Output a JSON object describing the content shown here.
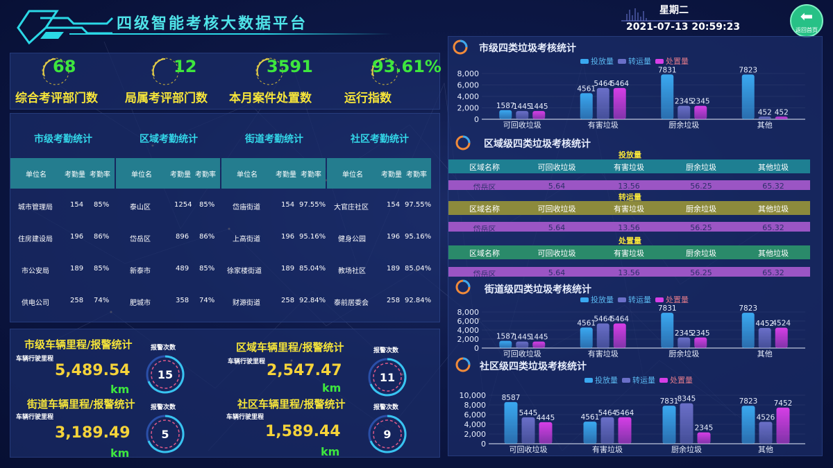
{
  "header": {
    "title": "四级智能考核大数据平台",
    "weekday": "星期二",
    "datetime": "2021-07-13 20:59:23",
    "home_label": "返回首页"
  },
  "kpis": [
    {
      "value": "68",
      "label": "综合考评部门数"
    },
    {
      "value": "12",
      "label": "局属考评部门数"
    },
    {
      "value": "3591",
      "label": "本月案件处置数"
    },
    {
      "value": "93.61%",
      "label": "运行指数"
    }
  ],
  "attendance": [
    {
      "title": "市级考勤统计",
      "cols": [
        "单位名",
        "考勤量",
        "考勤率"
      ],
      "rows": [
        [
          "城市管理局",
          "154",
          "85%"
        ],
        [
          "住房建设局",
          "196",
          "86%"
        ],
        [
          "市公安局",
          "189",
          "85%"
        ],
        [
          "供电公司",
          "258",
          "74%"
        ]
      ]
    },
    {
      "title": "区域考勤统计",
      "cols": [
        "单位名",
        "考勤量",
        "考勤率"
      ],
      "rows": [
        [
          "泰山区",
          "1254",
          "85%"
        ],
        [
          "岱岳区",
          "896",
          "86%"
        ],
        [
          "新泰市",
          "489",
          "85%"
        ],
        [
          "肥城市",
          "358",
          "74%"
        ]
      ]
    },
    {
      "title": "街道考勤统计",
      "cols": [
        "单位名",
        "考勤量",
        "考勤率"
      ],
      "rows": [
        [
          "岱庙街道",
          "154",
          "97.55%"
        ],
        [
          "上高街道",
          "196",
          "95.16%"
        ],
        [
          "徐家楼街道",
          "189",
          "85.04%"
        ],
        [
          "财源街道",
          "258",
          "92.84%"
        ]
      ]
    },
    {
      "title": "社区考勤统计",
      "cols": [
        "单位名",
        "考勤量",
        "考勤率"
      ],
      "rows": [
        [
          "大官庄社区",
          "154",
          "97.55%"
        ],
        [
          "健身公园",
          "196",
          "95.16%"
        ],
        [
          "教场社区",
          "189",
          "85.04%"
        ],
        [
          "泰前居委会",
          "258",
          "92.84%"
        ]
      ]
    }
  ],
  "vehicles": [
    {
      "title": "市级车辆里程/报警统计",
      "mileage_label": "车辆行驶里程",
      "mileage": "5,489.54",
      "unit": "km",
      "alarm_label": "报警次数",
      "alarms": "15"
    },
    {
      "title": "区域车辆里程/报警统计",
      "mileage_label": "车辆行驶里程",
      "mileage": "2,547.47",
      "unit": "km",
      "alarm_label": "报警次数",
      "alarms": "11"
    },
    {
      "title": "街道车辆里程/报警统计",
      "mileage_label": "车辆行驶里程",
      "mileage": "3,189.49",
      "unit": "km",
      "alarm_label": "报警次数",
      "alarms": "5"
    },
    {
      "title": "社区车辆里程/报警统计",
      "mileage_label": "车辆行驶里程",
      "mileage": "1,589.44",
      "unit": "km",
      "alarm_label": "报警次数",
      "alarms": "9"
    }
  ],
  "region_tables": {
    "title": "区域级四类垃圾考核统计",
    "cols": [
      "区域名称",
      "可回收垃圾",
      "有害垃圾",
      "厨余垃圾",
      "其他垃圾"
    ],
    "row": [
      "岱岳区",
      "5.64",
      "13.56",
      "56.25",
      "65.32"
    ],
    "captions": [
      "投放量",
      "转运量",
      "处置量"
    ],
    "head_colors": [
      "#1e7f92",
      "#8c8a3c",
      "#2a8a6a"
    ]
  },
  "colors": {
    "deliver": "#3aa8f0",
    "transfer": "#6a6fc8",
    "dispose": "#d63ee6",
    "accent": "#33d6e8",
    "kpi_value": "#3ee63e",
    "kpi_label": "#f5e43a"
  },
  "chart_data": [
    {
      "id": "city",
      "type": "bar",
      "title": "市级四类垃圾考核统计",
      "categories": [
        "可回收垃圾",
        "有害垃圾",
        "厨余垃圾",
        "其他"
      ],
      "series": [
        {
          "name": "投放量",
          "values": [
            1587,
            4561,
            7831,
            7823
          ]
        },
        {
          "name": "转运量",
          "values": [
            1445,
            5464,
            2345,
            452
          ]
        },
        {
          "name": "处置量",
          "values": [
            1445,
            5464,
            2345,
            452
          ]
        }
      ],
      "yticks": [
        0,
        2000,
        4000,
        6000,
        8000
      ],
      "ytick_labels": [
        "0",
        "2,000",
        "4,000",
        "6,000",
        "8,000"
      ],
      "ylim": [
        0,
        8000
      ]
    },
    {
      "id": "street",
      "type": "bar",
      "title": "街道级四类垃圾考核统计",
      "categories": [
        "可回收垃圾",
        "有害垃圾",
        "厨余垃圾",
        "其他"
      ],
      "series": [
        {
          "name": "投放量",
          "values": [
            1587,
            4561,
            7831,
            7823
          ]
        },
        {
          "name": "转运量",
          "values": [
            1445,
            5464,
            2345,
            4452
          ]
        },
        {
          "name": "处置量",
          "values": [
            1445,
            5464,
            2345,
            4524
          ]
        }
      ],
      "yticks": [
        0,
        2000,
        4000,
        6000,
        8000
      ],
      "ytick_labels": [
        "0",
        "2,000",
        "4,000",
        "6,000",
        "8,000"
      ],
      "ylim": [
        0,
        8000
      ]
    },
    {
      "id": "community",
      "type": "bar",
      "title": "社区级四类垃圾考核统计",
      "categories": [
        "可回收垃圾",
        "有害垃圾",
        "厨余垃圾",
        "其他"
      ],
      "series": [
        {
          "name": "投放量",
          "values": [
            8587,
            4561,
            7831,
            7823
          ]
        },
        {
          "name": "转运量",
          "values": [
            5445,
            5464,
            8345,
            4526
          ]
        },
        {
          "name": "处置量",
          "values": [
            4445,
            5464,
            2345,
            7452
          ]
        }
      ],
      "yticks": [
        0,
        2000,
        4000,
        6000,
        8000,
        10000
      ],
      "ytick_labels": [
        "0",
        "2,000",
        "4,000",
        "6,000",
        "8,000",
        "10,000"
      ],
      "ylim": [
        0,
        10000
      ]
    }
  ]
}
